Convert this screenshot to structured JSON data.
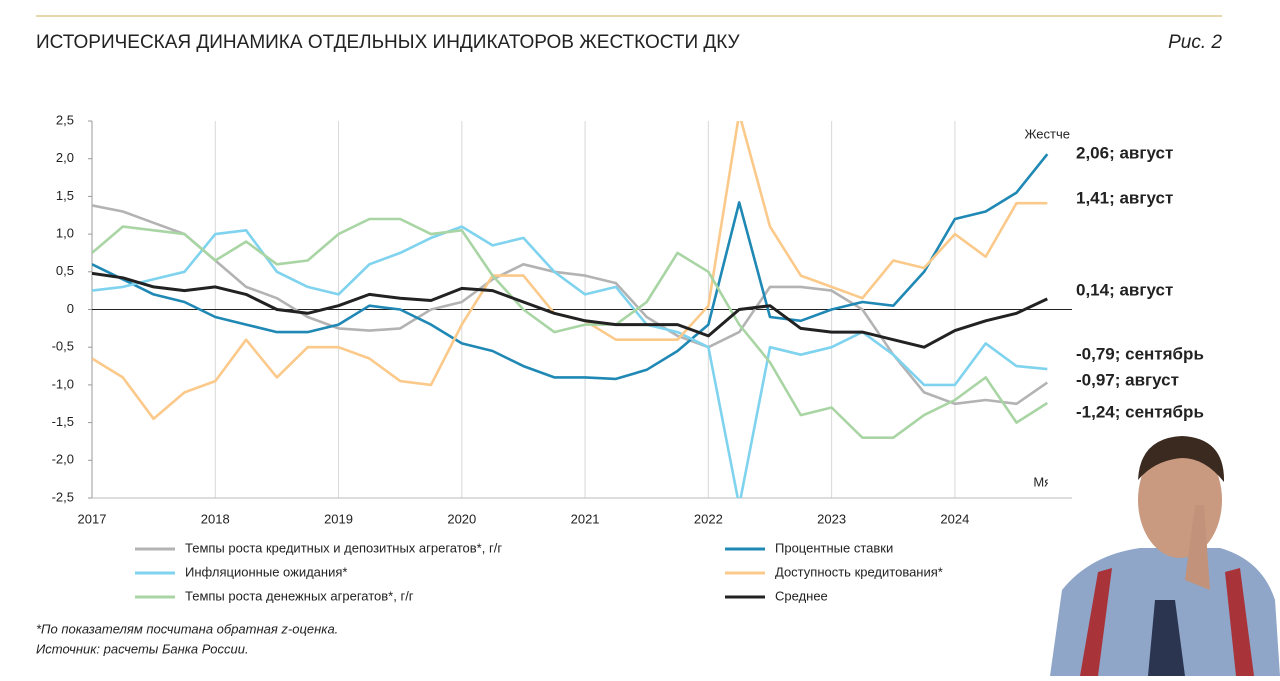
{
  "header": {
    "title": "ИСТОРИЧЕСКАЯ ДИНАМИКА ОТДЕЛЬНЫХ ИНДИКАТОРОВ ЖЕСТКОСТИ ДКУ",
    "figure": "Рис. 2"
  },
  "chart_data": {
    "type": "line",
    "x": [
      2017,
      2017.25,
      2017.5,
      2017.75,
      2018,
      2018.25,
      2018.5,
      2018.75,
      2019,
      2019.25,
      2019.5,
      2019.75,
      2020,
      2020.25,
      2020.5,
      2020.75,
      2021,
      2021.25,
      2021.5,
      2021.75,
      2022,
      2022.25,
      2022.5,
      2022.75,
      2023,
      2023.25,
      2023.5,
      2023.75,
      2024,
      2024.25,
      2024.5,
      2024.75
    ],
    "xlim": [
      2017,
      2024.95
    ],
    "xticks": [
      2017,
      2018,
      2019,
      2020,
      2021,
      2022,
      2023,
      2024
    ],
    "ylim": [
      -2.5,
      2.5
    ],
    "yticks": [
      {
        "value": -2.5,
        "label": "-2,5"
      },
      {
        "value": -2,
        "label": "-2,0"
      },
      {
        "value": -1.5,
        "label": "-1,5"
      },
      {
        "value": -1,
        "label": "-1,0"
      },
      {
        "value": -0.5,
        "label": "-0,5"
      },
      0,
      {
        "value": 0.5,
        "label": "0,5"
      },
      {
        "value": 1,
        "label": "1,0"
      },
      {
        "value": 1.5,
        "label": "1,5"
      },
      {
        "value": 2,
        "label": "2,0"
      },
      {
        "value": 2.5,
        "label": "2,5"
      }
    ],
    "grid": true,
    "annotations": [
      "Жестче",
      "Мягче"
    ],
    "series": [
      {
        "name": "Темпы роста кредитных и депозитных агрегатов*, г/г",
        "color": "#b3b3b3",
        "end_label": "-0,97; август",
        "values": [
          1.38,
          1.3,
          1.15,
          1.0,
          0.65,
          0.3,
          0.15,
          -0.1,
          -0.25,
          -0.28,
          -0.25,
          0.0,
          0.1,
          0.4,
          0.6,
          0.5,
          0.45,
          0.35,
          -0.1,
          -0.35,
          -0.5,
          -0.3,
          0.3,
          0.3,
          0.25,
          0.0,
          -0.6,
          -1.1,
          -1.25,
          -1.2,
          -1.25,
          -0.97
        ]
      },
      {
        "name": "Процентные ставки",
        "color": "#1f88b4",
        "end_label": "2,06; август",
        "values": [
          0.6,
          0.4,
          0.2,
          0.1,
          -0.1,
          -0.2,
          -0.3,
          -0.3,
          -0.2,
          0.05,
          0.0,
          -0.2,
          -0.45,
          -0.55,
          -0.75,
          -0.9,
          -0.9,
          -0.92,
          -0.8,
          -0.55,
          -0.2,
          1.42,
          -0.1,
          -0.15,
          0.0,
          0.1,
          0.05,
          0.5,
          1.2,
          1.3,
          1.55,
          2.06
        ]
      },
      {
        "name": "Инфляционные ожидания*",
        "color": "#7fd3ee",
        "end_label": "-0,79; сентябрь",
        "values": [
          0.25,
          0.3,
          0.4,
          0.5,
          1.0,
          1.05,
          0.5,
          0.3,
          0.2,
          0.6,
          0.75,
          0.95,
          1.1,
          0.85,
          0.95,
          0.5,
          0.2,
          0.3,
          -0.2,
          -0.3,
          -0.5,
          -2.6,
          -0.5,
          -0.6,
          -0.5,
          -0.3,
          -0.6,
          -1.0,
          -1.0,
          -0.45,
          -0.75,
          -0.79
        ]
      },
      {
        "name": "Доступность кредитования*",
        "color": "#fbc98a",
        "end_label": "1,41; август",
        "values": [
          -0.65,
          -0.9,
          -1.45,
          -1.1,
          -0.95,
          -0.4,
          -0.9,
          -0.5,
          -0.5,
          -0.65,
          -0.95,
          -1.0,
          -0.2,
          0.45,
          0.45,
          -0.05,
          -0.15,
          -0.4,
          -0.4,
          -0.4,
          0.05,
          2.6,
          1.1,
          0.45,
          0.3,
          0.15,
          0.65,
          0.55,
          1.0,
          0.7,
          1.41,
          1.41
        ]
      },
      {
        "name": "Темпы роста денежных агрегатов*, г/г",
        "color": "#a9d5a4",
        "end_label": "-1,24; сентябрь",
        "values": [
          0.75,
          1.1,
          1.05,
          1.0,
          0.65,
          0.9,
          0.6,
          0.65,
          1.0,
          1.2,
          1.2,
          1.0,
          1.05,
          0.45,
          0.0,
          -0.3,
          -0.2,
          -0.2,
          0.1,
          0.75,
          0.5,
          -0.2,
          -0.7,
          -1.4,
          -1.3,
          -1.7,
          -1.7,
          -1.4,
          -1.2,
          -0.9,
          -1.5,
          -1.24
        ]
      },
      {
        "name": "Среднее",
        "color": "#222222",
        "end_label": "0,14; август",
        "values": [
          0.48,
          0.42,
          0.3,
          0.25,
          0.3,
          0.2,
          0.0,
          -0.05,
          0.05,
          0.2,
          0.15,
          0.12,
          0.28,
          0.25,
          0.1,
          -0.05,
          -0.15,
          -0.2,
          -0.2,
          -0.2,
          -0.35,
          0.0,
          0.05,
          -0.25,
          -0.3,
          -0.3,
          -0.4,
          -0.5,
          -0.28,
          -0.15,
          -0.05,
          0.14
        ]
      }
    ]
  },
  "footnotes": [
    "*По показателям посчитана обратная z-оценка.",
    "Источник: расчеты Банка России."
  ]
}
